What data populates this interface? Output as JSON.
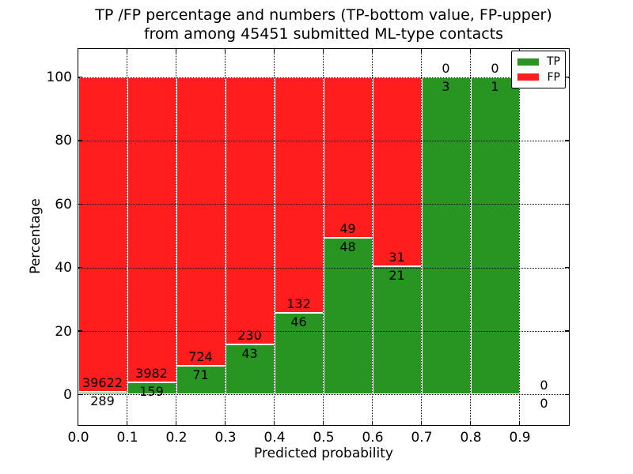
{
  "figure": {
    "title_line1": "TP /FP percentage and numbers (TP-bottom value, FP-upper)",
    "title_line2": "from among 45451 submitted ML-type contacts",
    "xlabel": "Predicted probability",
    "ylabel": "Percentage"
  },
  "legend": {
    "items": [
      {
        "label": "TP",
        "color": "#289422"
      },
      {
        "label": "FP",
        "color": "#ff1d1d"
      }
    ]
  },
  "chart_data": {
    "type": "bar",
    "stacked": true,
    "normalized_to_percent": true,
    "title": "TP /FP percentage and numbers (TP-bottom value, FP-upper) from among 45451 submitted ML-type contacts",
    "xlabel": "Predicted probability",
    "ylabel": "Percentage",
    "total_submitted": 45451,
    "xlim": [
      0.0,
      1.0
    ],
    "ylim": [
      -9.5,
      109.0
    ],
    "bin_width": 0.1,
    "bin_starts": [
      0.0,
      0.1,
      0.2,
      0.3,
      0.4,
      0.5,
      0.6,
      0.7,
      0.8,
      0.9
    ],
    "x_tick_labels": [
      "0.0",
      "0.1",
      "0.2",
      "0.3",
      "0.4",
      "0.5",
      "0.6",
      "0.7",
      "0.8",
      "0.9"
    ],
    "y_ticks": [
      0,
      20,
      40,
      60,
      80,
      100
    ],
    "grid": "dotted-black-both-axes-drawn-over-bars",
    "legend_position": "upper-right",
    "bar_edge_color": "#ffffff",
    "series": [
      {
        "name": "TP",
        "color": "#289422",
        "counts": [
          289,
          159,
          71,
          43,
          46,
          48,
          21,
          3,
          1,
          0
        ]
      },
      {
        "name": "FP",
        "color": "#ff1d1d",
        "counts": [
          39622,
          3982,
          724,
          230,
          132,
          49,
          31,
          0,
          0,
          0
        ]
      }
    ],
    "tp_percent_of_bin": [
      0.72,
      3.84,
      8.93,
      15.75,
      25.84,
      49.48,
      40.38,
      100.0,
      100.0,
      0.0
    ]
  }
}
